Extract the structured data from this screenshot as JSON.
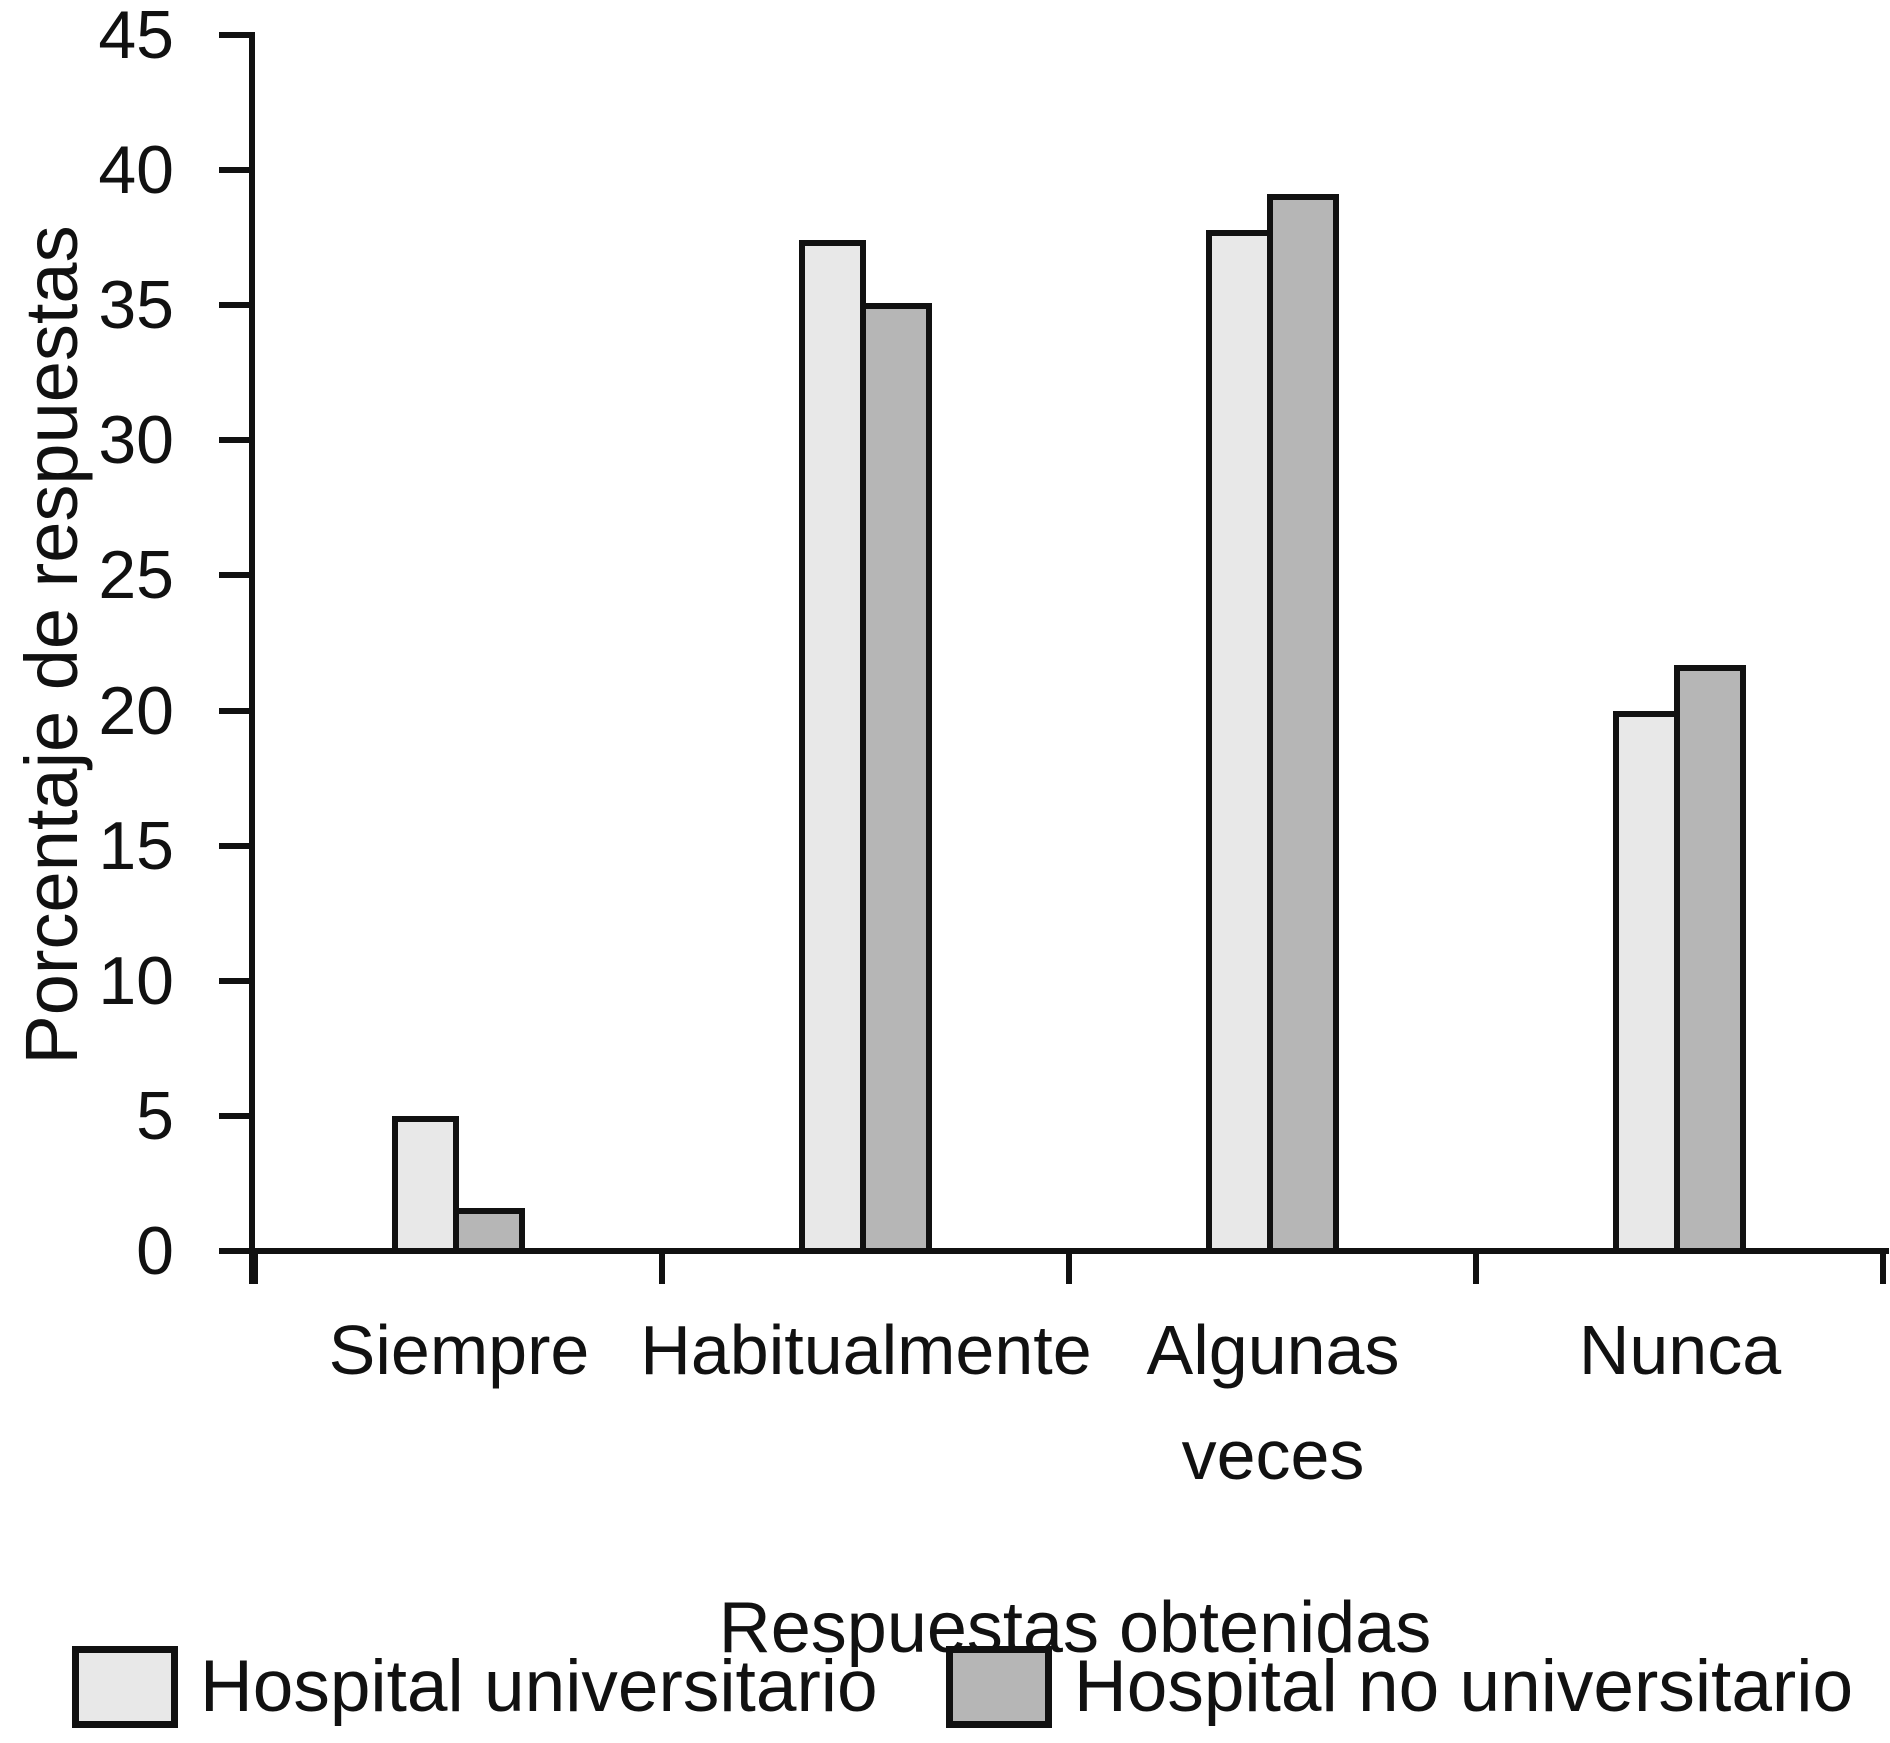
{
  "chart_data": {
    "type": "bar",
    "title": "",
    "categories": [
      "Siempre",
      "Habitualmente",
      "Algunas veces",
      "Nunca"
    ],
    "category_display": [
      [
        "Siempre"
      ],
      [
        "Habitualmente"
      ],
      [
        "Algunas",
        "veces"
      ],
      [
        "Nunca"
      ]
    ],
    "series": [
      {
        "name": "Hospital universitario",
        "color": "#e8e8e8",
        "values": [
          5,
          37.4,
          37.8,
          20
        ]
      },
      {
        "name": "Hospital no universitario",
        "color": "#b6b6b6",
        "values": [
          1.6,
          35.1,
          39.1,
          21.7
        ]
      }
    ],
    "xlabel": "Respuestas obtenidas",
    "ylabel": "Porcentaje de respuestas",
    "ylim": [
      0,
      45
    ],
    "yticks": [
      0,
      5,
      10,
      15,
      20,
      25,
      30,
      35,
      40,
      45
    ],
    "grid": "off",
    "legend_position": "bottom",
    "axis_color": "#111111",
    "bar_border_color": "#111111",
    "background_color": "#ffffff"
  }
}
